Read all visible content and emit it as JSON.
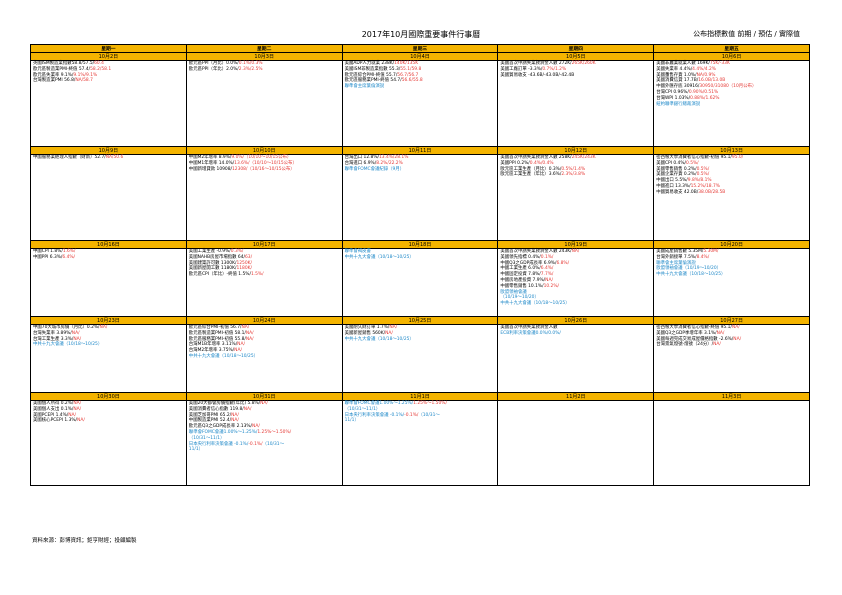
{
  "title": "2017年10月國際重要事件行事曆",
  "legend": "公布指標數值 前期 / 預估 / 實際值",
  "weekdays": [
    "星期一",
    "星期二",
    "星期三",
    "星期四",
    "星期五"
  ],
  "weeks": [
    {
      "dates": [
        "10月2日",
        "10月3日",
        "10月4日",
        "10月5日",
        "10月6日"
      ],
      "cells": [
        [
          [
            {
              "t": "英國ISM製造業指數58.8/57.5/"
            },
            {
              "t": "60.4",
              "c": "red"
            }
          ],
          [
            {
              "t": "歐元區製造業PMI-終值 57.4/"
            },
            {
              "t": "58.2/58.1",
              "c": "red"
            }
          ],
          [
            {
              "t": "歐元區失業率 9.1%/"
            },
            {
              "t": "9.1%/9.1%",
              "c": "red"
            }
          ],
          [
            {
              "t": "台灣製造業PMI 56.8/"
            },
            {
              "t": "NA/58.7",
              "c": "red"
            }
          ]
        ],
        [
          [
            {
              "t": "歐元區PPI（月比）0.0%/"
            },
            {
              "t": "0.1%/0.3%",
              "c": "red"
            }
          ],
          [
            {
              "t": "歐元區PPI（年比）2.0%/"
            },
            {
              "t": "2.3%/2.5%",
              "c": "red"
            }
          ]
        ],
        [
          [
            {
              "t": "美國ADP人力就業 238K/"
            },
            {
              "t": "140K/135K",
              "c": "red"
            }
          ],
          [
            {
              "t": "美國ISM非製造業指數 55.3/"
            },
            {
              "t": "55.1/59.8",
              "c": "red"
            }
          ],
          [
            {
              "t": "歐元區綜合PMI-終值 55.7/"
            },
            {
              "t": "56.7/56.7",
              "c": "red"
            }
          ],
          [
            {
              "t": "歐元區服務業PMI-終值 54.7/"
            },
            {
              "t": "56.6/55.8",
              "c": "red"
            }
          ],
          [
            {
              "t": "聯準會主席葉倫演說",
              "c": "blue"
            }
          ]
        ],
        [
          [
            {
              "t": "美國首次申請失業救濟金人數 272K/"
            },
            {
              "t": "265K/260K",
              "c": "red"
            }
          ],
          [
            {
              "t": "美國工廠訂單 -3.3%/"
            },
            {
              "t": "0.7%/1.2%",
              "c": "red"
            }
          ],
          [
            {
              "t": "美國貿易收支 -43.6B/-43.0B/-42.4B"
            }
          ]
        ],
        [
          [
            {
              "t": "美國非農業就業人數 169K/"
            },
            {
              "t": "75K/-33K",
              "c": "red"
            }
          ],
          [
            {
              "t": "美國失業率 4.4%/"
            },
            {
              "t": "4.4%/4.2%",
              "c": "red"
            }
          ],
          [
            {
              "t": "美國躉售存貨 1.0%/"
            },
            {
              "t": "NA/0.9%",
              "c": "red"
            }
          ],
          [
            {
              "t": "美國消費信貸 17.7B/"
            },
            {
              "t": "16.0B/13.0B",
              "c": "red"
            }
          ],
          [
            {
              "t": "中國外匯存底 30916/"
            },
            {
              "t": "30950/31080（10月公布）",
              "c": "red"
            }
          ],
          [
            {
              "t": "台灣CPI 0.96%/"
            },
            {
              "t": "0.90%/0.51%",
              "c": "red"
            }
          ],
          [
            {
              "t": "台灣WPI 1.03%/"
            },
            {
              "t": "0.88%/1.62%",
              "c": "red"
            }
          ],
          [
            {
              "t": "紐約聯準銀行總裁演說",
              "c": "blue"
            }
          ]
        ]
      ]
    },
    {
      "dates": [
        "10月9日",
        "10月10日",
        "10月11日",
        "10月12日",
        "10月13日"
      ],
      "cells": [
        [
          [
            {
              "t": "中國服務業經理人指數（財新）52.7/"
            },
            {
              "t": "NA/50.6",
              "c": "red"
            }
          ]
        ],
        [
          [
            {
              "t": "中國M2年增率 8.9%/"
            },
            {
              "t": "9.0%/（10/10～10/15公布）",
              "c": "red"
            }
          ],
          [
            {
              "t": "中國M1年增率 14.0%/"
            },
            {
              "t": "13.6%/（10/10～10/15公布）",
              "c": "red"
            }
          ],
          [
            {
              "t": "中國新增貸款 10908/"
            },
            {
              "t": "12308/（10/16～10/15公布）",
              "c": "red"
            }
          ]
        ],
        [
          [
            {
              "t": "台灣出口 12.8%/"
            },
            {
              "t": "13.4%/28.1%",
              "c": "red"
            }
          ],
          [
            {
              "t": "台灣進口 6.9%/"
            },
            {
              "t": "8.2%/22.2%",
              "c": "red"
            }
          ],
          [
            {
              "t": "聯準會FOMC會議紀錄（9月）",
              "c": "blue"
            }
          ]
        ],
        [
          [
            {
              "t": "美國首次申請失業救濟金人數 258K/"
            },
            {
              "t": "245K/243K",
              "c": "red"
            }
          ],
          [
            {
              "t": "美國PPI 0.2%/"
            },
            {
              "t": "0.4%/0.4%",
              "c": "red"
            }
          ],
          [
            {
              "t": "歐元區工業生產（月比）0.3%/"
            },
            {
              "t": "0.5%/1.4%",
              "c": "red"
            }
          ],
          [
            {
              "t": "歐元區工業生產（年比）3.6%/"
            },
            {
              "t": "2.3%/3.8%",
              "c": "red"
            }
          ]
        ],
        [
          [
            {
              "t": "密西根大學消費者信心指數-初值 95.1/"
            },
            {
              "t": "95.0/",
              "c": "red"
            }
          ],
          [
            {
              "t": "美國CPI 0.4%/"
            },
            {
              "t": "0.5%/",
              "c": "red"
            }
          ],
          [
            {
              "t": "美國零售銷售 0.2%/"
            },
            {
              "t": "0.5%/",
              "c": "red"
            }
          ],
          [
            {
              "t": "美國企業存貨 0.2%/"
            },
            {
              "t": "0.5%/",
              "c": "red"
            }
          ],
          [
            {
              "t": "中國出口 5.5%/"
            },
            {
              "t": "9.8%/8.1%",
              "c": "red"
            }
          ],
          [
            {
              "t": "中國進口 13.3%/"
            },
            {
              "t": "15.2%/18.7%",
              "c": "red"
            }
          ],
          [
            {
              "t": "中國貿易收支 42.0B/"
            },
            {
              "t": "38.0B/28.5B",
              "c": "red"
            }
          ]
        ]
      ]
    },
    {
      "dates": [
        "10月16日",
        "10月17日",
        "10月18日",
        "10月19日",
        "10月20日"
      ],
      "cells": [
        [
          [
            {
              "t": "中國CPI 1.8%/"
            },
            {
              "t": "1.6%/",
              "c": "red"
            }
          ],
          [
            {
              "t": "中國PPI 6.3%/"
            },
            {
              "t": "6.4%/",
              "c": "red"
            }
          ]
        ],
        [
          [
            {
              "t": "美國工業生產 -0.9%/"
            },
            {
              "t": "0.3%/",
              "c": "red"
            }
          ],
          [
            {
              "t": "美國NAHB房屋市場指數 64/"
            },
            {
              "t": "63/",
              "c": "red"
            }
          ],
          [
            {
              "t": "美國建築許可數 1300K/"
            },
            {
              "t": "1250K/",
              "c": "red"
            }
          ],
          [
            {
              "t": "美國新屋開工數 1180K/"
            },
            {
              "t": "1180K/",
              "c": "red"
            }
          ],
          [
            {
              "t": "歐元區CPI（年比）-終值 1.5%/"
            },
            {
              "t": "1.5%/",
              "c": "red"
            }
          ]
        ],
        [
          [
            {
              "t": "聯準會褐皮書",
              "c": "blue"
            }
          ],
          [
            {
              "t": "中共十九大會議（10/18～10/25）",
              "c": "blue"
            }
          ]
        ],
        [
          [
            {
              "t": "美國首次申請失業救濟金人數 243K/"
            },
            {
              "t": "NA/",
              "c": "red"
            }
          ],
          [
            {
              "t": "美國領先指標 0.4%/"
            },
            {
              "t": "0.1%/",
              "c": "red"
            }
          ],
          [
            {
              "t": "中國Q3之GDP成長率 6.9%/"
            },
            {
              "t": "6.8%/",
              "c": "red"
            }
          ],
          [
            {
              "t": "中國工業生產 6.0%/"
            },
            {
              "t": "6.4%/",
              "c": "red"
            }
          ],
          [
            {
              "t": "中國固定投資 7.8%/"
            },
            {
              "t": "7.7%/",
              "c": "red"
            }
          ],
          [
            {
              "t": "中國房地產投資 7.9%/"
            },
            {
              "t": "NA/",
              "c": "red"
            }
          ],
          [
            {
              "t": "中國零售銷售 10.1%/"
            },
            {
              "t": "10.2%/",
              "c": "red"
            }
          ],
          [
            {
              "t": "歐盟領袖會議",
              "c": "blue"
            }
          ],
          [
            {
              "t": "（10/19～10/20）",
              "c": "blue"
            }
          ],
          [
            {
              "t": "中共十九大會議（10/18～10/25）",
              "c": "blue"
            }
          ]
        ],
        [
          [
            {
              "t": "美國成屋銷售數 5.35M/"
            },
            {
              "t": "5.30M/",
              "c": "red"
            }
          ],
          [
            {
              "t": "台灣外銷接單 7.5%/"
            },
            {
              "t": "8.4%/",
              "c": "red"
            }
          ],
          [
            {
              "t": "聯準會主席葉倫演說",
              "c": "blue"
            }
          ],
          [
            {
              "t": "歐盟領袖會議（10/19～10/20）",
              "c": "blue"
            }
          ],
          [
            {
              "t": "中共十九大會議（10/18～10/25）",
              "c": "blue"
            }
          ]
        ]
      ]
    },
    {
      "dates": [
        "10月23日",
        "10月24日",
        "10月25日",
        "10月26日",
        "10月27日"
      ],
      "cells": [
        [
          [
            {
              "t": "中國70大城市房價（月比）0.2%/"
            },
            {
              "t": "NA/",
              "c": "red"
            }
          ],
          [
            {
              "t": "台灣失業率 3.89%/"
            },
            {
              "t": "NA/",
              "c": "red"
            }
          ],
          [
            {
              "t": "台灣工業生產 3.3%/"
            },
            {
              "t": "NA/",
              "c": "red"
            }
          ],
          [
            {
              "t": "中共十九大會議（10/18～10/25）",
              "c": "blue"
            }
          ]
        ],
        [
          [
            {
              "t": "歐元區綜合PMI-初值 56.7/"
            },
            {
              "t": "NA/",
              "c": "red"
            }
          ],
          [
            {
              "t": "歐元區製造業PMI-初值 58.1/"
            },
            {
              "t": "NA/",
              "c": "red"
            }
          ],
          [
            {
              "t": "歐元區服務業PMI-初值 55.8/"
            },
            {
              "t": "NA/",
              "c": "red"
            }
          ],
          [
            {
              "t": "台灣M1B年增率 3.11%/"
            },
            {
              "t": "NA/",
              "c": "red"
            }
          ],
          [
            {
              "t": "台灣M2年增率 3.75%/"
            },
            {
              "t": "NA/",
              "c": "red"
            }
          ],
          [
            {
              "t": "中共十九大會議（10/18～10/25）",
              "c": "blue"
            }
          ]
        ],
        [
          [
            {
              "t": "美國耐久財訂單 1.7%/"
            },
            {
              "t": "NA/",
              "c": "red"
            }
          ],
          [
            {
              "t": "美國新屋銷售 560K/"
            },
            {
              "t": "NA/",
              "c": "red"
            }
          ],
          [
            {
              "t": "中共十九大會議（10/18～10/25）",
              "c": "blue"
            }
          ]
        ],
        [
          [
            {
              "t": "美國首次申請失業救濟金人數"
            }
          ],
          [
            {
              "t": "ECB利率決策會議0.0%/0.0%/",
              "c": "blue"
            }
          ]
        ],
        [
          [
            {
              "t": "密西根大學消費者信心指數-終值 95.1/"
            },
            {
              "t": "NA/",
              "c": "red"
            }
          ],
          [
            {
              "t": "美國Q3之GDP季增年率 3.1%/"
            },
            {
              "t": "NA/",
              "c": "red"
            }
          ],
          [
            {
              "t": "美國每週完成交易成屋價格指數 -2.6%/"
            },
            {
              "t": "NA/",
              "c": "red"
            }
          ],
          [
            {
              "t": "台灣景氣燈號-燈號（24分）/"
            },
            {
              "t": "NA/",
              "c": "red"
            }
          ]
        ]
      ]
    },
    {
      "dates": [
        "10月30日",
        "10月31日",
        "11月1日",
        "11月2日",
        "11月3日"
      ],
      "cells": [
        [
          [
            {
              "t": "美國個人所得 0.2%/"
            },
            {
              "t": "NA/",
              "c": "red"
            }
          ],
          [
            {
              "t": "美國個人支出 0.1%/"
            },
            {
              "t": "NA/",
              "c": "red"
            }
          ],
          [
            {
              "t": "美國PCEPI 1.4%/"
            },
            {
              "t": "NA/",
              "c": "red"
            }
          ],
          [
            {
              "t": "美國核心PCEPI 1.3%/"
            },
            {
              "t": "NA/",
              "c": "red"
            }
          ]
        ],
        [
          [
            {
              "t": "美國20大都會房價指數(年比) 5.8%/"
            },
            {
              "t": "NA/",
              "c": "red"
            }
          ],
          [
            {
              "t": "美國消費者信心指數 119.8/"
            },
            {
              "t": "NA/",
              "c": "red"
            }
          ],
          [
            {
              "t": "美國芝加哥PMI 65.2/"
            },
            {
              "t": "NA/",
              "c": "red"
            }
          ],
          [
            {
              "t": "中國製造業PMI 52.4/"
            },
            {
              "t": "NA/",
              "c": "red"
            }
          ],
          [
            {
              "t": "歐元區Q3之GDP成長率 2.13%/"
            },
            {
              "t": "NA/",
              "c": "red"
            }
          ],
          [
            {
              "t": "聯準會FOMC會議1.00%～1.25%/",
              "c": "blue"
            },
            {
              "t": "1.25%～1.50%/",
              "c": "red"
            }
          ],
          [
            {
              "t": "（10/31～11/1）",
              "c": "blue"
            }
          ],
          [
            {
              "t": "日本央行利率決策會議 -0.1%/",
              "c": "blue"
            },
            {
              "t": "-0.1%/",
              "c": "red"
            },
            {
              "t": "（10/31～",
              "c": "blue"
            }
          ],
          [
            {
              "t": "11/1）",
              "c": "blue"
            }
          ]
        ],
        [
          [
            {
              "t": "聯準會FOMC會議1.00%～1.25%/",
              "c": "blue"
            },
            {
              "t": "1.25%～1.50%/",
              "c": "red"
            }
          ],
          [
            {
              "t": "（10/31～11/1）",
              "c": "blue"
            }
          ],
          [
            {
              "t": "日本央行利率決策會議 -0.1%/",
              "c": "blue"
            },
            {
              "t": "-0.1%/",
              "c": "red"
            },
            {
              "t": "（10/31～",
              "c": "blue"
            }
          ],
          [
            {
              "t": "11/1）",
              "c": "blue"
            }
          ]
        ],
        [],
        []
      ]
    }
  ],
  "footer": "資料來源：彭博資訊；鉅亨財經；投顧編製",
  "colors": {
    "header_bg": "#f4b400",
    "blue": "#1e88c8",
    "red": "#e53935"
  }
}
